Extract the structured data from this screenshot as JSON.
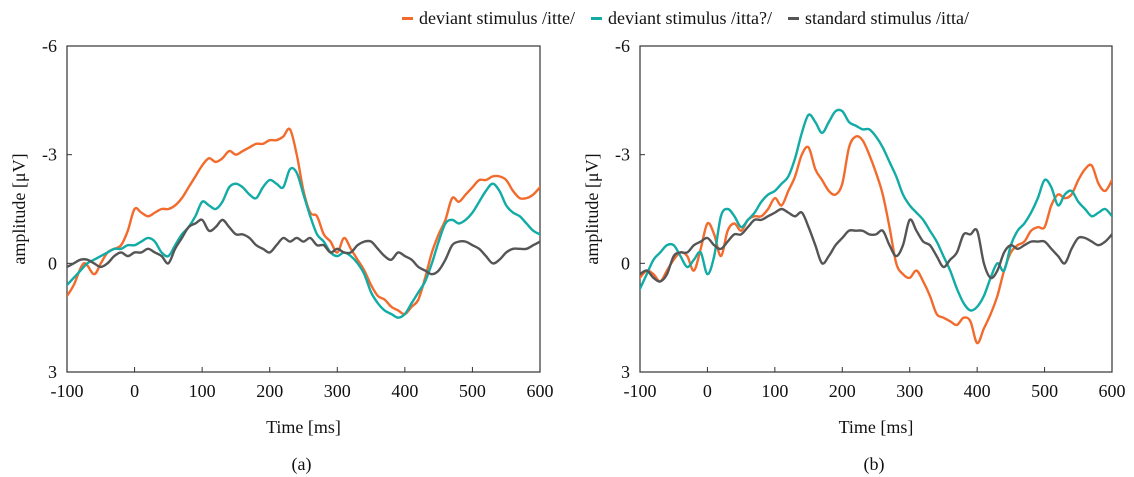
{
  "legend": {
    "items": [
      {
        "label": "deviant stimulus /itte/",
        "color": "#F26B2D"
      },
      {
        "label": "deviant stimulus /itta?/",
        "color": "#12ABA5"
      },
      {
        "label": "standard stimulus /itta/",
        "color": "#555555"
      }
    ]
  },
  "chart_data": [
    {
      "type": "line",
      "caption": "(a)",
      "xlabel": "Time [ms]",
      "ylabel": "amplitude [μV]",
      "xlim": [
        -100,
        600
      ],
      "ylim": [
        -6,
        3
      ],
      "y_inverted": true,
      "xticks": [
        -100,
        0,
        100,
        200,
        300,
        400,
        500,
        600
      ],
      "yticks": [
        -6,
        -3,
        0,
        3
      ],
      "grid": false,
      "series": [
        {
          "name": "deviant stimulus /itte/",
          "color": "#F26B2D",
          "x": [
            -100,
            -90,
            -75,
            -60,
            -50,
            -40,
            -30,
            -20,
            -10,
            0,
            10,
            20,
            30,
            40,
            50,
            60,
            70,
            80,
            90,
            100,
            110,
            120,
            130,
            140,
            150,
            160,
            170,
            180,
            190,
            200,
            210,
            220,
            230,
            240,
            250,
            260,
            270,
            280,
            290,
            300,
            310,
            320,
            330,
            340,
            350,
            360,
            370,
            380,
            390,
            400,
            410,
            420,
            430,
            440,
            450,
            460,
            470,
            480,
            490,
            500,
            510,
            520,
            530,
            540,
            550,
            560,
            570,
            580,
            590,
            600
          ],
          "y": [
            0.9,
            0.6,
            0.0,
            0.3,
            0.0,
            -0.3,
            -0.4,
            -0.5,
            -0.9,
            -1.5,
            -1.4,
            -1.3,
            -1.4,
            -1.5,
            -1.5,
            -1.6,
            -1.8,
            -2.1,
            -2.4,
            -2.7,
            -2.9,
            -2.8,
            -2.9,
            -3.1,
            -3.0,
            -3.1,
            -3.2,
            -3.3,
            -3.3,
            -3.4,
            -3.4,
            -3.5,
            -3.7,
            -3.0,
            -2.0,
            -1.4,
            -1.3,
            -0.8,
            -0.6,
            -0.3,
            -0.7,
            -0.4,
            -0.1,
            0.2,
            0.6,
            0.9,
            1.0,
            1.2,
            1.3,
            1.4,
            1.2,
            1.0,
            0.4,
            -0.3,
            -0.8,
            -1.2,
            -1.8,
            -1.7,
            -1.9,
            -2.1,
            -2.3,
            -2.3,
            -2.4,
            -2.4,
            -2.3,
            -2.0,
            -1.8,
            -1.8,
            -1.9,
            -2.1
          ]
        },
        {
          "name": "deviant stimulus /itta?/",
          "color": "#12ABA5",
          "x": [
            -100,
            -90,
            -80,
            -70,
            -60,
            -50,
            -40,
            -30,
            -20,
            -10,
            0,
            10,
            20,
            30,
            40,
            50,
            60,
            70,
            80,
            90,
            100,
            110,
            120,
            130,
            140,
            150,
            160,
            170,
            180,
            190,
            200,
            210,
            220,
            230,
            240,
            250,
            260,
            270,
            280,
            290,
            300,
            310,
            320,
            330,
            340,
            350,
            360,
            370,
            380,
            390,
            400,
            410,
            420,
            430,
            440,
            450,
            460,
            470,
            480,
            490,
            500,
            510,
            520,
            530,
            540,
            550,
            560,
            570,
            580,
            590,
            600
          ],
          "y": [
            0.6,
            0.4,
            0.2,
            0.0,
            -0.1,
            -0.2,
            -0.3,
            -0.4,
            -0.4,
            -0.5,
            -0.5,
            -0.6,
            -0.7,
            -0.6,
            -0.3,
            -0.2,
            -0.5,
            -0.8,
            -1.0,
            -1.3,
            -1.7,
            -1.6,
            -1.5,
            -1.7,
            -2.1,
            -2.2,
            -2.1,
            -1.9,
            -1.8,
            -2.1,
            -2.3,
            -2.2,
            -2.1,
            -2.6,
            -2.5,
            -1.9,
            -1.3,
            -0.8,
            -0.6,
            -0.3,
            -0.2,
            -0.3,
            -0.2,
            0.0,
            0.3,
            0.8,
            1.1,
            1.3,
            1.4,
            1.5,
            1.4,
            1.1,
            0.8,
            0.5,
            0.0,
            -0.6,
            -1.1,
            -1.2,
            -1.1,
            -1.2,
            -1.4,
            -1.7,
            -2.0,
            -2.2,
            -2.0,
            -1.6,
            -1.4,
            -1.3,
            -1.1,
            -0.9,
            -0.8
          ]
        },
        {
          "name": "standard stimulus /itta/",
          "color": "#555555",
          "x": [
            -100,
            -90,
            -80,
            -70,
            -60,
            -50,
            -40,
            -30,
            -20,
            -10,
            0,
            10,
            20,
            30,
            40,
            50,
            60,
            70,
            80,
            90,
            100,
            110,
            120,
            130,
            140,
            150,
            160,
            170,
            180,
            190,
            200,
            210,
            220,
            230,
            240,
            250,
            260,
            270,
            280,
            290,
            300,
            310,
            320,
            330,
            340,
            350,
            360,
            370,
            380,
            390,
            400,
            410,
            420,
            430,
            440,
            450,
            460,
            470,
            480,
            490,
            500,
            510,
            520,
            530,
            540,
            550,
            560,
            570,
            580,
            590,
            600
          ],
          "y": [
            0.1,
            0.0,
            -0.1,
            -0.1,
            0.0,
            0.1,
            0.0,
            -0.2,
            -0.3,
            -0.2,
            -0.3,
            -0.3,
            -0.4,
            -0.3,
            -0.2,
            0.0,
            -0.4,
            -0.7,
            -1.0,
            -1.1,
            -1.2,
            -0.9,
            -1.0,
            -1.2,
            -1.0,
            -0.8,
            -0.8,
            -0.7,
            -0.5,
            -0.4,
            -0.3,
            -0.5,
            -0.7,
            -0.6,
            -0.7,
            -0.6,
            -0.7,
            -0.5,
            -0.5,
            -0.3,
            -0.4,
            -0.3,
            -0.3,
            -0.5,
            -0.6,
            -0.6,
            -0.4,
            -0.2,
            -0.1,
            -0.3,
            -0.2,
            -0.1,
            0.1,
            0.2,
            0.3,
            0.2,
            -0.1,
            -0.5,
            -0.6,
            -0.6,
            -0.5,
            -0.4,
            -0.2,
            0.0,
            -0.1,
            -0.3,
            -0.4,
            -0.4,
            -0.4,
            -0.5,
            -0.6
          ]
        }
      ]
    },
    {
      "type": "line",
      "caption": "(b)",
      "xlabel": "Time [ms]",
      "ylabel": "amplitude [μV]",
      "xlim": [
        -100,
        600
      ],
      "ylim": [
        -6,
        3
      ],
      "y_inverted": true,
      "xticks": [
        -100,
        0,
        100,
        200,
        300,
        400,
        500,
        600
      ],
      "yticks": [
        -6,
        -3,
        0,
        3
      ],
      "grid": false,
      "series": [
        {
          "name": "deviant stimulus /itte/",
          "color": "#F26B2D",
          "x": [
            -100,
            -90,
            -80,
            -70,
            -60,
            -50,
            -40,
            -30,
            -20,
            -10,
            0,
            10,
            20,
            30,
            40,
            50,
            60,
            70,
            80,
            90,
            100,
            110,
            120,
            130,
            140,
            150,
            160,
            170,
            180,
            190,
            200,
            210,
            220,
            230,
            240,
            250,
            260,
            270,
            280,
            290,
            300,
            310,
            320,
            330,
            340,
            350,
            360,
            370,
            380,
            390,
            400,
            410,
            420,
            430,
            440,
            450,
            460,
            470,
            480,
            490,
            500,
            510,
            520,
            530,
            540,
            550,
            560,
            570,
            580,
            590,
            600
          ],
          "y": [
            0.4,
            0.2,
            0.3,
            0.5,
            0.2,
            -0.1,
            -0.3,
            -0.2,
            0.2,
            -0.4,
            -1.1,
            -0.8,
            -0.2,
            -0.9,
            -1.1,
            -0.9,
            -1.2,
            -1.3,
            -1.3,
            -1.5,
            -1.8,
            -1.6,
            -2.0,
            -2.4,
            -3.0,
            -3.2,
            -2.6,
            -2.3,
            -2.0,
            -1.9,
            -2.2,
            -3.2,
            -3.5,
            -3.4,
            -3.0,
            -2.5,
            -1.9,
            -1.0,
            0.0,
            0.3,
            0.4,
            0.2,
            0.5,
            0.9,
            1.4,
            1.5,
            1.6,
            1.7,
            1.5,
            1.6,
            2.2,
            1.8,
            1.4,
            0.9,
            0.2,
            -0.3,
            -0.5,
            -0.6,
            -0.9,
            -1.0,
            -1.0,
            -1.6,
            -1.9,
            -1.8,
            -1.9,
            -2.3,
            -2.6,
            -2.7,
            -2.2,
            -2.0,
            -2.3
          ]
        },
        {
          "name": "deviant stimulus /itta?/",
          "color": "#12ABA5",
          "x": [
            -100,
            -90,
            -80,
            -70,
            -60,
            -50,
            -40,
            -30,
            -20,
            -10,
            0,
            10,
            20,
            30,
            40,
            50,
            60,
            70,
            80,
            90,
            100,
            110,
            120,
            130,
            140,
            150,
            160,
            170,
            180,
            190,
            200,
            210,
            220,
            230,
            240,
            250,
            260,
            270,
            280,
            290,
            300,
            310,
            320,
            330,
            340,
            350,
            360,
            370,
            380,
            390,
            400,
            410,
            420,
            430,
            440,
            450,
            460,
            470,
            480,
            490,
            500,
            510,
            520,
            530,
            540,
            550,
            560,
            570,
            580,
            590,
            600
          ],
          "y": [
            0.7,
            0.3,
            -0.1,
            -0.3,
            -0.5,
            -0.5,
            -0.2,
            0.1,
            -0.1,
            -0.3,
            0.3,
            -0.2,
            -1.3,
            -1.5,
            -1.3,
            -1.0,
            -1.2,
            -1.4,
            -1.7,
            -1.9,
            -2.0,
            -2.2,
            -2.4,
            -2.9,
            -3.6,
            -4.1,
            -3.9,
            -3.6,
            -3.9,
            -4.2,
            -4.2,
            -3.9,
            -3.8,
            -3.7,
            -3.7,
            -3.5,
            -3.2,
            -2.8,
            -2.4,
            -1.9,
            -1.6,
            -1.4,
            -1.2,
            -0.9,
            -0.6,
            -0.2,
            0.2,
            0.7,
            1.1,
            1.3,
            1.2,
            0.9,
            0.4,
            0.0,
            0.2,
            -0.5,
            -0.9,
            -1.1,
            -1.4,
            -1.8,
            -2.3,
            -2.1,
            -1.6,
            -1.9,
            -2.0,
            -1.7,
            -1.5,
            -1.3,
            -1.4,
            -1.5,
            -1.3
          ]
        },
        {
          "name": "standard stimulus /itta/",
          "color": "#555555",
          "x": [
            -100,
            -90,
            -80,
            -70,
            -60,
            -50,
            -40,
            -30,
            -20,
            -10,
            0,
            10,
            20,
            30,
            40,
            50,
            60,
            70,
            80,
            90,
            100,
            110,
            120,
            130,
            140,
            150,
            160,
            170,
            180,
            190,
            200,
            210,
            220,
            230,
            240,
            250,
            260,
            270,
            280,
            290,
            300,
            310,
            320,
            330,
            340,
            350,
            360,
            370,
            380,
            390,
            400,
            410,
            420,
            430,
            440,
            450,
            460,
            470,
            480,
            490,
            500,
            510,
            520,
            530,
            540,
            550,
            560,
            570,
            580,
            590,
            600
          ],
          "y": [
            0.3,
            0.2,
            0.4,
            0.5,
            0.3,
            -0.2,
            -0.3,
            -0.3,
            -0.5,
            -0.6,
            -0.7,
            -0.5,
            -0.4,
            -0.6,
            -0.8,
            -0.8,
            -1.0,
            -1.2,
            -1.2,
            -1.3,
            -1.4,
            -1.5,
            -1.4,
            -1.3,
            -1.4,
            -1.0,
            -0.5,
            0.0,
            -0.2,
            -0.5,
            -0.7,
            -0.9,
            -0.9,
            -0.9,
            -0.8,
            -0.8,
            -0.9,
            -0.5,
            -0.2,
            -0.5,
            -1.2,
            -0.9,
            -0.6,
            -0.5,
            -0.2,
            0.1,
            -0.1,
            -0.3,
            -0.8,
            -0.8,
            -0.9,
            0.0,
            0.4,
            0.2,
            -0.3,
            -0.5,
            -0.4,
            -0.5,
            -0.6,
            -0.6,
            -0.6,
            -0.4,
            -0.2,
            0.0,
            -0.4,
            -0.7,
            -0.7,
            -0.6,
            -0.5,
            -0.6,
            -0.8
          ]
        }
      ]
    }
  ]
}
